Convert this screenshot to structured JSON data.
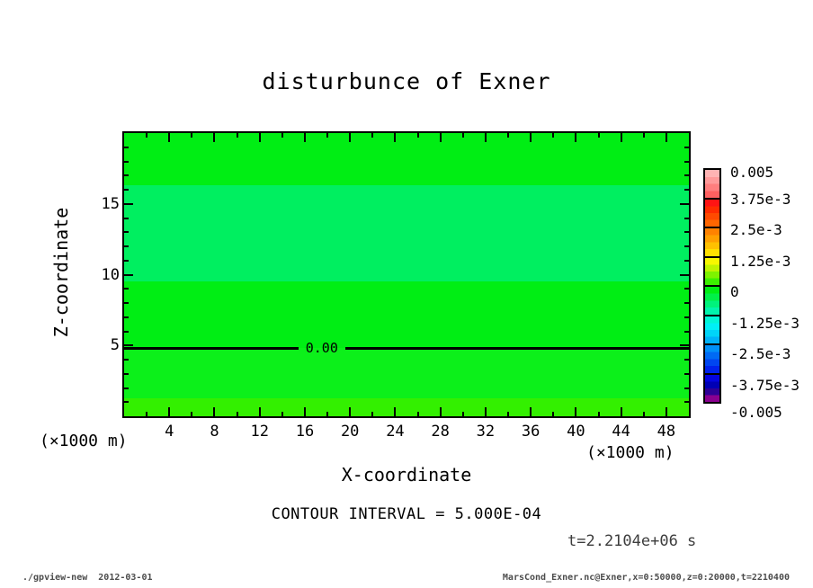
{
  "chart_data": {
    "type": "heatmap",
    "subtype": "filled-contour",
    "title": "disturbunce of Exner",
    "xlabel": "X-coordinate",
    "ylabel": "Z-coordinate",
    "x_unit": "(×1000 m)",
    "y_unit": "(×1000 m)",
    "xlim": [
      0,
      50
    ],
    "ylim": [
      0,
      20
    ],
    "x_tick_labels": [
      4,
      8,
      12,
      16,
      20,
      24,
      28,
      32,
      36,
      40,
      44,
      48
    ],
    "x_minor_step": 2,
    "y_tick_labels": [
      5,
      10,
      15
    ],
    "y_minor_step": 1,
    "fill_bands": [
      {
        "z_from": 16.3,
        "z_to": 20.0,
        "color": "#00ee14"
      },
      {
        "z_from": 9.55,
        "z_to": 16.3,
        "color": "#00ef60"
      },
      {
        "z_from": 4.85,
        "z_to": 9.55,
        "color": "#00ee14"
      },
      {
        "z_from": 1.25,
        "z_to": 4.85,
        "color": "#0cf01a"
      },
      {
        "z_from": 0.0,
        "z_to": 1.25,
        "color": "#33f000"
      }
    ],
    "contour_line": {
      "z": 4.85,
      "label": "0.00",
      "label_x": 17.5,
      "color": "#000000"
    },
    "colorbar": {
      "tick_labels": [
        "0.005",
        "3.75e-3",
        "2.5e-3",
        "1.25e-3",
        "0",
        "-1.25e-3",
        "-2.5e-3",
        "-3.75e-3",
        "-0.005"
      ],
      "segments": [
        [
          "#ffb4b4",
          "#ff9a9a",
          "#ff7e7e",
          "#ff6060"
        ],
        [
          "#ff1414",
          "#ff2c00",
          "#ff4a00",
          "#ff6600"
        ],
        [
          "#ff8200",
          "#ffa000",
          "#ffc000",
          "#ffe000"
        ],
        [
          "#f8f800",
          "#c0f400",
          "#7ef200",
          "#3cf000"
        ],
        [
          "#00ee14",
          "#00f048",
          "#00f27c",
          "#00f4ac"
        ],
        [
          "#00f6d6",
          "#00f0f6",
          "#00d4f8",
          "#00b2f8"
        ],
        [
          "#0090f8",
          "#006af4",
          "#0046f0",
          "#0022ec"
        ],
        [
          "#0404e0",
          "#0000b4",
          "#2e0096",
          "#8a0090"
        ]
      ]
    },
    "contour_interval_text": "CONTOUR INTERVAL = 5.000E-04",
    "time_text": "t=2.2104e+06 s"
  },
  "footer": {
    "left": "./gpview-new  2012-03-01",
    "right": "MarsCond_Exner.nc@Exner,x=0:50000,z=0:20000,t=2210400"
  }
}
